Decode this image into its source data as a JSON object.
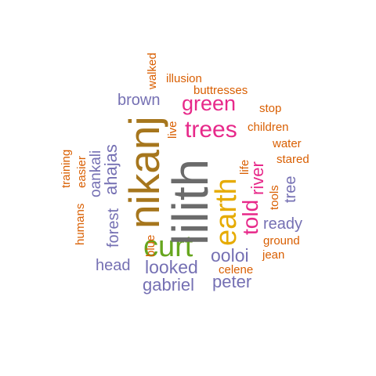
{
  "colors": {
    "gray": "#6b6b6b",
    "brown": "#a6761d",
    "pink": "#e7298a",
    "green": "#66a61e",
    "yellow": "#e6ab02",
    "orange": "#d95f02",
    "purple": "#7570b3"
  },
  "words": {
    "lilith": "lilith",
    "nikanj": "nikanj",
    "earth": "earth",
    "curt": "curt",
    "trees": "trees",
    "told": "told",
    "green": "green",
    "river": "river",
    "ooloi": "ooloi",
    "looked": "looked",
    "gabriel": "gabriel",
    "peter": "peter",
    "head": "head",
    "brown": "brown",
    "ahajas": "ahajas",
    "oankali": "oankali",
    "forest": "forest",
    "ready": "ready",
    "tree": "tree",
    "illusion": "illusion",
    "buttresses": "buttresses",
    "walked": "walked",
    "stop": "stop",
    "children": "children",
    "water": "water",
    "stared": "stared",
    "tools": "tools",
    "life": "life",
    "live": "live",
    "blue": "blue",
    "ground": "ground",
    "jean": "jean",
    "celene": "celene",
    "training": "training",
    "easier": "easier",
    "humans": "humans"
  }
}
